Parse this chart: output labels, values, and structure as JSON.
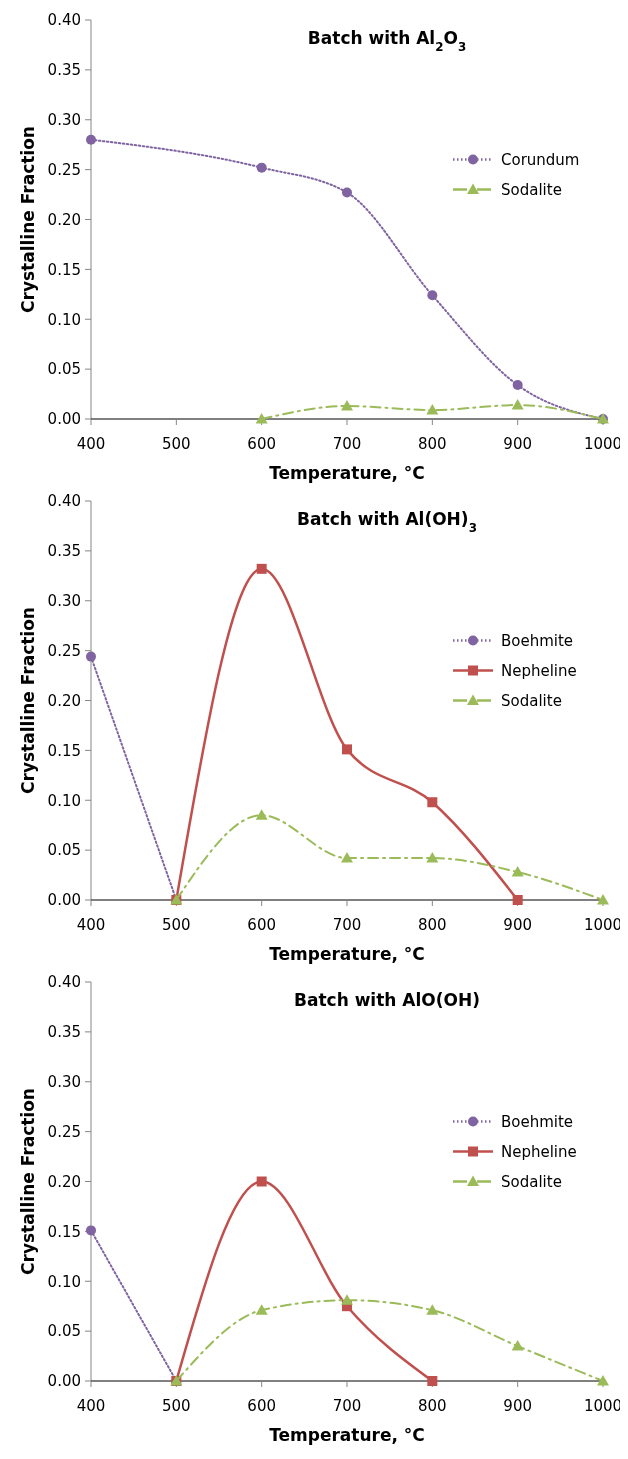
{
  "chart_data": [
    {
      "type": "line",
      "title": "Batch with Al$_{2}$O$_{3}$",
      "xlabel": "Temperature, °C",
      "ylabel": "Crystalline Fraction",
      "xlim": [
        400,
        1000
      ],
      "xticks": [
        400,
        500,
        600,
        700,
        800,
        900,
        1000
      ],
      "ylim": [
        0,
        0.4
      ],
      "yticks": [
        {
          "value": 0,
          "label": "0.00"
        },
        {
          "value": 0.05,
          "label": "0.05"
        },
        {
          "value": 0.1,
          "label": "0.10"
        },
        {
          "value": 0.15,
          "label": "0.15"
        },
        {
          "value": 0.2,
          "label": "0.20"
        },
        {
          "value": 0.25,
          "label": "0.25"
        },
        {
          "value": 0.3,
          "label": "0.30"
        },
        {
          "value": 0.35,
          "label": "0.35"
        },
        {
          "value": 0.4,
          "label": "0.40"
        }
      ],
      "grid": false,
      "legend": "right",
      "series": [
        {
          "name": "Corundum",
          "color": "#8064a2",
          "marker": "circle",
          "line_style": "dotted",
          "x": [
            400,
            600,
            700,
            800,
            900,
            1000
          ],
          "values": [
            0.28,
            0.252,
            0.227,
            0.124,
            0.034,
            0.0
          ]
        },
        {
          "name": "Sodalite",
          "color": "#9bbb59",
          "marker": "triangle",
          "line_style": "dashed",
          "x": [
            600,
            700,
            800,
            900,
            1000
          ],
          "values": [
            0.0,
            0.013,
            0.009,
            0.014,
            0.0
          ]
        }
      ]
    },
    {
      "type": "line",
      "title": "Batch with Al(OH)$_{3}$",
      "xlabel": "Temperature, °C",
      "ylabel": "Crystalline Fraction",
      "xlim": [
        400,
        1000
      ],
      "xticks": [
        400,
        500,
        600,
        700,
        800,
        900,
        1000
      ],
      "ylim": [
        0,
        0.4
      ],
      "yticks": [
        {
          "value": 0,
          "label": "0.00"
        },
        {
          "value": 0.05,
          "label": "0.05"
        },
        {
          "value": 0.1,
          "label": "0.10"
        },
        {
          "value": 0.15,
          "label": "0.15"
        },
        {
          "value": 0.2,
          "label": "0.20"
        },
        {
          "value": 0.25,
          "label": "0.25"
        },
        {
          "value": 0.3,
          "label": "0.30"
        },
        {
          "value": 0.35,
          "label": "0.35"
        },
        {
          "value": 0.4,
          "label": "0.40"
        }
      ],
      "grid": false,
      "legend": "right",
      "series": [
        {
          "name": "Boehmite",
          "color": "#8064a2",
          "marker": "circle",
          "line_style": "dotted",
          "x": [
            400,
            500
          ],
          "values": [
            0.244,
            0.0
          ]
        },
        {
          "name": "Nepheline",
          "color": "#c0504d",
          "marker": "square",
          "line_style": "solid",
          "x": [
            500,
            600,
            700,
            800,
            900
          ],
          "values": [
            0.0,
            0.332,
            0.151,
            0.098,
            0.0
          ]
        },
        {
          "name": "Sodalite",
          "color": "#9bbb59",
          "marker": "triangle",
          "line_style": "dashed",
          "x": [
            500,
            600,
            700,
            800,
            900,
            1000
          ],
          "values": [
            0.0,
            0.085,
            0.042,
            0.042,
            0.028,
            0.0
          ]
        }
      ]
    },
    {
      "type": "line",
      "title": "Batch with AlO(OH)",
      "xlabel": "Temperature, °C",
      "ylabel": "Crystalline Fraction",
      "xlim": [
        400,
        1000
      ],
      "xticks": [
        400,
        500,
        600,
        700,
        800,
        900,
        1000
      ],
      "ylim": [
        0,
        0.4
      ],
      "yticks": [
        {
          "value": 0,
          "label": "0.00"
        },
        {
          "value": 0.05,
          "label": "0.05"
        },
        {
          "value": 0.1,
          "label": "0.10"
        },
        {
          "value": 0.15,
          "label": "0.15"
        },
        {
          "value": 0.2,
          "label": "0.20"
        },
        {
          "value": 0.25,
          "label": "0.25"
        },
        {
          "value": 0.3,
          "label": "0.30"
        },
        {
          "value": 0.35,
          "label": "0.35"
        },
        {
          "value": 0.4,
          "label": "0.40"
        }
      ],
      "grid": false,
      "legend": "right",
      "series": [
        {
          "name": "Boehmite",
          "color": "#8064a2",
          "marker": "circle",
          "line_style": "dotted",
          "x": [
            400,
            500
          ],
          "values": [
            0.151,
            0.0
          ]
        },
        {
          "name": "Nepheline",
          "color": "#c0504d",
          "marker": "square",
          "line_style": "solid",
          "x": [
            500,
            600,
            700,
            800
          ],
          "values": [
            0.0,
            0.2,
            0.075,
            0.0
          ]
        },
        {
          "name": "Sodalite",
          "color": "#9bbb59",
          "marker": "triangle",
          "line_style": "dashed",
          "x": [
            500,
            600,
            700,
            800,
            900,
            1000
          ],
          "values": [
            0.0,
            0.071,
            0.081,
            0.071,
            0.035,
            0.0
          ]
        }
      ]
    }
  ]
}
